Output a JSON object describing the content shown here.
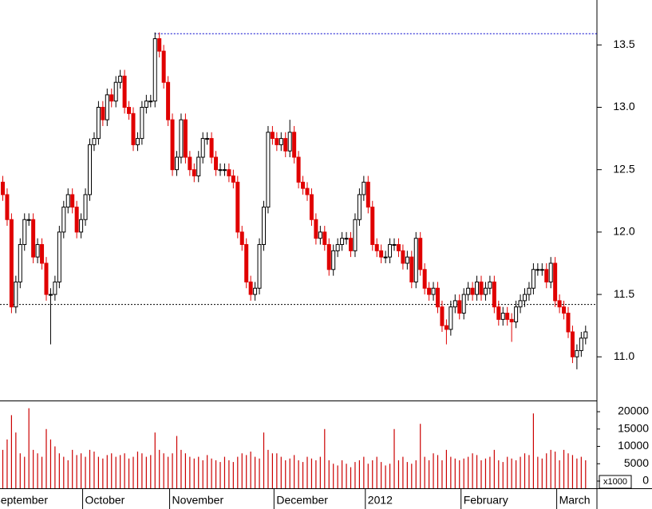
{
  "chart_data": {
    "type": "candlestick",
    "categories": [
      "September",
      null,
      null,
      null,
      null,
      null,
      null,
      null,
      null,
      null,
      null,
      null,
      null,
      null,
      null,
      null,
      null,
      null,
      null,
      "October",
      null,
      null,
      null,
      null,
      null,
      null,
      null,
      null,
      null,
      null,
      null,
      null,
      null,
      null,
      null,
      null,
      null,
      null,
      null,
      "November",
      null,
      null,
      null,
      null,
      null,
      null,
      null,
      null,
      null,
      null,
      null,
      null,
      null,
      null,
      null,
      null,
      null,
      null,
      null,
      null,
      null,
      null,
      null,
      "December",
      null,
      null,
      null,
      null,
      null,
      null,
      null,
      null,
      null,
      null,
      null,
      null,
      null,
      null,
      null,
      null,
      null,
      null,
      null,
      null,
      "2012",
      null,
      null,
      null,
      null,
      null,
      null,
      null,
      null,
      null,
      null,
      null,
      null,
      null,
      null,
      null,
      null,
      null,
      null,
      null,
      null,
      null,
      "February",
      null,
      null,
      null,
      null,
      null,
      null,
      null,
      null,
      null,
      null,
      null,
      null,
      null,
      null,
      null,
      null,
      null,
      null,
      null,
      null,
      null,
      "March",
      null,
      null,
      null,
      null,
      null,
      null
    ],
    "ohlc": [
      [
        12.4,
        12.45,
        12.25,
        12.3
      ],
      [
        12.3,
        12.35,
        12.05,
        12.1
      ],
      [
        12.1,
        12.15,
        11.35,
        11.4
      ],
      [
        11.4,
        11.65,
        11.35,
        11.6
      ],
      [
        11.6,
        11.95,
        11.55,
        11.9
      ],
      [
        11.9,
        12.15,
        11.85,
        12.1
      ],
      [
        12.1,
        12.15,
        12.05,
        12.1
      ],
      [
        12.1,
        12.15,
        11.75,
        11.8
      ],
      [
        11.8,
        11.95,
        11.75,
        11.9
      ],
      [
        11.9,
        11.95,
        11.7,
        11.75
      ],
      [
        11.75,
        11.8,
        11.45,
        11.5
      ],
      [
        11.5,
        11.55,
        11.1,
        11.5
      ],
      [
        11.5,
        11.65,
        11.45,
        11.6
      ],
      [
        11.6,
        12.05,
        11.55,
        12.0
      ],
      [
        12.0,
        12.25,
        11.95,
        12.2
      ],
      [
        12.2,
        12.35,
        12.15,
        12.3
      ],
      [
        12.3,
        12.35,
        12.15,
        12.2
      ],
      [
        12.2,
        12.25,
        11.95,
        12.0
      ],
      [
        12.0,
        12.15,
        11.95,
        12.1
      ],
      [
        12.1,
        12.35,
        12.05,
        12.3
      ],
      [
        12.3,
        12.75,
        12.25,
        12.7
      ],
      [
        12.7,
        12.8,
        12.65,
        12.75
      ],
      [
        12.75,
        13.05,
        12.7,
        13.0
      ],
      [
        13.0,
        13.05,
        12.85,
        12.9
      ],
      [
        12.9,
        13.15,
        12.85,
        13.1
      ],
      [
        13.1,
        13.15,
        13.0,
        13.05
      ],
      [
        13.05,
        13.25,
        13.0,
        13.2
      ],
      [
        13.2,
        13.3,
        13.15,
        13.25
      ],
      [
        13.25,
        13.3,
        12.95,
        13.0
      ],
      [
        13.0,
        13.05,
        12.9,
        12.95
      ],
      [
        12.95,
        13.0,
        12.65,
        12.7
      ],
      [
        12.7,
        12.8,
        12.65,
        12.75
      ],
      [
        12.75,
        13.05,
        12.7,
        13.0
      ],
      [
        13.0,
        13.1,
        12.95,
        13.05
      ],
      [
        13.05,
        13.1,
        13.0,
        13.05
      ],
      [
        13.05,
        13.6,
        13.0,
        13.55
      ],
      [
        13.55,
        13.6,
        13.4,
        13.45
      ],
      [
        13.45,
        13.5,
        13.15,
        13.2
      ],
      [
        13.2,
        13.25,
        12.85,
        12.9
      ],
      [
        12.9,
        12.95,
        12.45,
        12.5
      ],
      [
        12.5,
        12.65,
        12.45,
        12.6
      ],
      [
        12.6,
        12.95,
        12.55,
        12.9
      ],
      [
        12.9,
        12.95,
        12.55,
        12.6
      ],
      [
        12.6,
        12.65,
        12.45,
        12.5
      ],
      [
        12.5,
        12.55,
        12.4,
        12.45
      ],
      [
        12.45,
        12.65,
        12.4,
        12.6
      ],
      [
        12.6,
        12.8,
        12.55,
        12.75
      ],
      [
        12.75,
        12.8,
        12.7,
        12.75
      ],
      [
        12.75,
        12.8,
        12.55,
        12.6
      ],
      [
        12.6,
        12.65,
        12.45,
        12.5
      ],
      [
        12.5,
        12.55,
        12.45,
        12.5
      ],
      [
        12.5,
        12.55,
        12.45,
        12.5
      ],
      [
        12.5,
        12.55,
        12.4,
        12.45
      ],
      [
        12.45,
        12.5,
        12.35,
        12.4
      ],
      [
        12.4,
        12.45,
        11.95,
        12.0
      ],
      [
        12.0,
        12.05,
        11.85,
        11.9
      ],
      [
        11.9,
        11.95,
        11.55,
        11.6
      ],
      [
        11.6,
        11.65,
        11.45,
        11.5
      ],
      [
        11.5,
        11.6,
        11.45,
        11.55
      ],
      [
        11.55,
        11.95,
        11.5,
        11.9
      ],
      [
        11.9,
        12.25,
        11.85,
        12.2
      ],
      [
        12.2,
        12.85,
        12.15,
        12.8
      ],
      [
        12.8,
        12.85,
        12.7,
        12.75
      ],
      [
        12.75,
        12.8,
        12.65,
        12.7
      ],
      [
        12.7,
        12.8,
        12.65,
        12.75
      ],
      [
        12.75,
        12.8,
        12.6,
        12.65
      ],
      [
        12.65,
        12.9,
        12.6,
        12.8
      ],
      [
        12.8,
        12.85,
        12.55,
        12.6
      ],
      [
        12.6,
        12.65,
        12.35,
        12.4
      ],
      [
        12.4,
        12.45,
        12.3,
        12.35
      ],
      [
        12.35,
        12.4,
        12.25,
        12.3
      ],
      [
        12.3,
        12.35,
        12.05,
        12.1
      ],
      [
        12.1,
        12.15,
        11.9,
        11.95
      ],
      [
        11.95,
        12.05,
        11.9,
        12.0
      ],
      [
        12.0,
        12.05,
        11.85,
        11.9
      ],
      [
        11.9,
        11.95,
        11.65,
        11.7
      ],
      [
        11.7,
        11.9,
        11.65,
        11.85
      ],
      [
        11.85,
        11.95,
        11.8,
        11.9
      ],
      [
        11.9,
        12.0,
        11.85,
        11.95
      ],
      [
        11.95,
        12.0,
        11.9,
        11.95
      ],
      [
        11.95,
        12.0,
        11.8,
        11.85
      ],
      [
        11.85,
        12.15,
        11.8,
        12.1
      ],
      [
        12.1,
        12.35,
        12.05,
        12.3
      ],
      [
        12.3,
        12.45,
        12.25,
        12.4
      ],
      [
        12.4,
        12.45,
        12.15,
        12.2
      ],
      [
        12.2,
        12.25,
        11.85,
        11.9
      ],
      [
        11.9,
        11.95,
        11.8,
        11.85
      ],
      [
        11.85,
        11.9,
        11.75,
        11.8
      ],
      [
        11.8,
        11.85,
        11.75,
        11.8
      ],
      [
        11.8,
        11.95,
        11.75,
        11.9
      ],
      [
        11.9,
        11.95,
        11.85,
        11.9
      ],
      [
        11.9,
        11.95,
        11.8,
        11.85
      ],
      [
        11.85,
        11.9,
        11.7,
        11.75
      ],
      [
        11.75,
        11.85,
        11.7,
        11.8
      ],
      [
        11.8,
        11.85,
        11.55,
        11.6
      ],
      [
        11.6,
        12.0,
        11.55,
        11.95
      ],
      [
        11.95,
        12.0,
        11.65,
        11.7
      ],
      [
        11.7,
        11.75,
        11.5,
        11.55
      ],
      [
        11.55,
        11.6,
        11.45,
        11.5
      ],
      [
        11.5,
        11.6,
        11.45,
        11.55
      ],
      [
        11.55,
        11.6,
        11.35,
        11.4
      ],
      [
        11.4,
        11.45,
        11.2,
        11.25
      ],
      [
        11.25,
        11.3,
        11.1,
        11.22
      ],
      [
        11.22,
        11.45,
        11.17,
        11.4
      ],
      [
        11.4,
        11.5,
        11.35,
        11.45
      ],
      [
        11.45,
        11.5,
        11.3,
        11.35
      ],
      [
        11.35,
        11.55,
        11.3,
        11.5
      ],
      [
        11.5,
        11.6,
        11.45,
        11.55
      ],
      [
        11.55,
        11.6,
        11.45,
        11.5
      ],
      [
        11.5,
        11.65,
        11.45,
        11.6
      ],
      [
        11.6,
        11.65,
        11.45,
        11.5
      ],
      [
        11.5,
        11.6,
        11.45,
        11.55
      ],
      [
        11.55,
        11.65,
        11.5,
        11.6
      ],
      [
        11.6,
        11.65,
        11.35,
        11.4
      ],
      [
        11.4,
        11.45,
        11.25,
        11.3
      ],
      [
        11.3,
        11.4,
        11.25,
        11.35
      ],
      [
        11.35,
        11.4,
        11.25,
        11.3
      ],
      [
        11.3,
        11.35,
        11.12,
        11.28
      ],
      [
        11.28,
        11.45,
        11.23,
        11.4
      ],
      [
        11.4,
        11.5,
        11.35,
        11.45
      ],
      [
        11.45,
        11.55,
        11.4,
        11.5
      ],
      [
        11.5,
        11.6,
        11.45,
        11.55
      ],
      [
        11.55,
        11.75,
        11.5,
        11.7
      ],
      [
        11.7,
        11.75,
        11.65,
        11.7
      ],
      [
        11.7,
        11.75,
        11.65,
        11.7
      ],
      [
        11.7,
        11.75,
        11.55,
        11.6
      ],
      [
        11.6,
        11.8,
        11.55,
        11.75
      ],
      [
        11.75,
        11.8,
        11.4,
        11.45
      ],
      [
        11.45,
        11.5,
        11.35,
        11.4
      ],
      [
        11.4,
        11.45,
        11.3,
        11.35
      ],
      [
        11.35,
        11.4,
        11.15,
        11.2
      ],
      [
        11.2,
        11.25,
        10.95,
        11.0
      ],
      [
        11.0,
        11.1,
        10.9,
        11.05
      ],
      [
        11.05,
        11.2,
        11.0,
        11.15
      ],
      [
        11.15,
        11.25,
        11.1,
        11.2
      ]
    ],
    "up_color": "#ffffff",
    "down_color": "#e00000",
    "ylim": [
      10.65,
      13.86
    ],
    "yticks": [
      {
        "value": 11,
        "label": "11.0"
      },
      11.5,
      {
        "value": 12,
        "label": "12.0"
      },
      12.5,
      {
        "value": 13,
        "label": "13.0"
      },
      13.5
    ],
    "hlines": [
      {
        "value": 13.59,
        "color": "#0000cc"
      },
      {
        "value": 11.42,
        "color": "#000000"
      }
    ],
    "volume": {
      "color": "#cc0000",
      "unit_label": "x1000",
      "ylim": [
        0,
        23000
      ],
      "yticks": [
        20000,
        15000,
        10000,
        5000,
        0
      ],
      "values": [
        9000,
        12000,
        19000,
        14000,
        8000,
        7000,
        21000,
        9000,
        8000,
        7000,
        15000,
        12000,
        10000,
        8000,
        7000,
        6000,
        9000,
        7500,
        8000,
        7000,
        9000,
        8500,
        7000,
        6500,
        7500,
        8000,
        7000,
        7500,
        8000,
        6500,
        7000,
        8500,
        8000,
        7000,
        7500,
        14000,
        9000,
        8000,
        7000,
        8000,
        13000,
        9000,
        8000,
        7000,
        6500,
        7000,
        6000,
        7500,
        6500,
        6000,
        5500,
        7000,
        6000,
        5500,
        7000,
        8000,
        7500,
        8500,
        7000,
        6500,
        14000,
        9000,
        8000,
        8000,
        7000,
        6000,
        6500,
        7500,
        6000,
        5500,
        7000,
        6500,
        6000,
        7000,
        15000,
        6000,
        5000,
        4500,
        6000,
        5000,
        4000,
        5500,
        6000,
        7000,
        5000,
        6000,
        7000,
        5500,
        4500,
        5000,
        15000,
        6000,
        7000,
        5500,
        5000,
        6000,
        16500,
        7000,
        6000,
        8000,
        7500,
        6000,
        9000,
        7000,
        6500,
        6000,
        6500,
        7000,
        8000,
        7500,
        6000,
        6500,
        7000,
        9000,
        6000,
        5500,
        7000,
        6500,
        6000,
        7000,
        8000,
        7500,
        19500,
        7000,
        6500,
        8000,
        9000,
        8500,
        6000,
        9000,
        8000,
        7500,
        6500,
        7000,
        6000
      ]
    }
  }
}
